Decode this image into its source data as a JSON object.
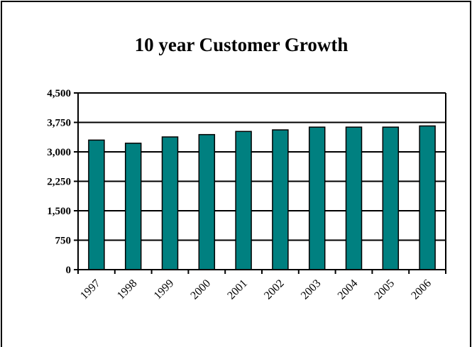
{
  "chart_data": {
    "type": "bar",
    "title": "10 year Customer Growth",
    "xlabel": "",
    "ylabel": "",
    "categories": [
      "1997",
      "1998",
      "1999",
      "2000",
      "2001",
      "2002",
      "2003",
      "2004",
      "2005",
      "2006"
    ],
    "values": [
      3300,
      3220,
      3380,
      3440,
      3520,
      3560,
      3630,
      3630,
      3630,
      3660
    ],
    "ylim": [
      0,
      4500
    ],
    "yticks": [
      "0",
      "750",
      "1,500",
      "2,250",
      "3,000",
      "3,750",
      "4,500"
    ],
    "ytick_values": [
      0,
      750,
      1500,
      2250,
      3000,
      3750,
      4500
    ],
    "grid": true,
    "legend": "none",
    "bar_color": "#008080"
  }
}
